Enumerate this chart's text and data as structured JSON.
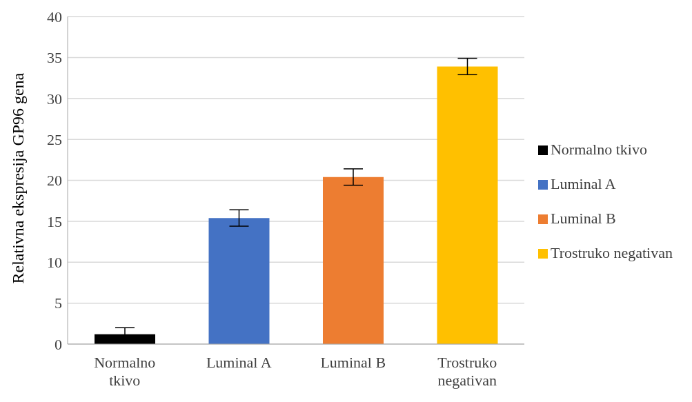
{
  "chart_data": {
    "type": "bar",
    "ylabel": "Relativna ekspresija GP96 gena",
    "categories": [
      "Normalno tkivo",
      "Luminal A",
      "Luminal B",
      "Trostruko negativan"
    ],
    "series": [
      {
        "name": "Normalno tkivo",
        "color": "#000000",
        "values": [
          1.2,
          null,
          null,
          null
        ],
        "errors": [
          0.8,
          null,
          null,
          null
        ]
      },
      {
        "name": "Luminal A",
        "color": "#4472c4",
        "values": [
          null,
          15.4,
          null,
          null
        ],
        "errors": [
          null,
          1.0,
          null,
          null
        ]
      },
      {
        "name": "Luminal B",
        "color": "#ed7d31",
        "values": [
          null,
          null,
          20.4,
          null
        ],
        "errors": [
          null,
          null,
          1.0,
          null
        ]
      },
      {
        "name": "Trostruko negativan",
        "color": "#ffc000",
        "values": [
          null,
          null,
          null,
          33.9
        ],
        "errors": [
          null,
          null,
          null,
          1.0
        ]
      }
    ],
    "ylim": [
      0,
      40
    ],
    "yticks": [
      0,
      5,
      10,
      15,
      20,
      25,
      30,
      35,
      40
    ],
    "grid": "y",
    "legend": "right"
  }
}
